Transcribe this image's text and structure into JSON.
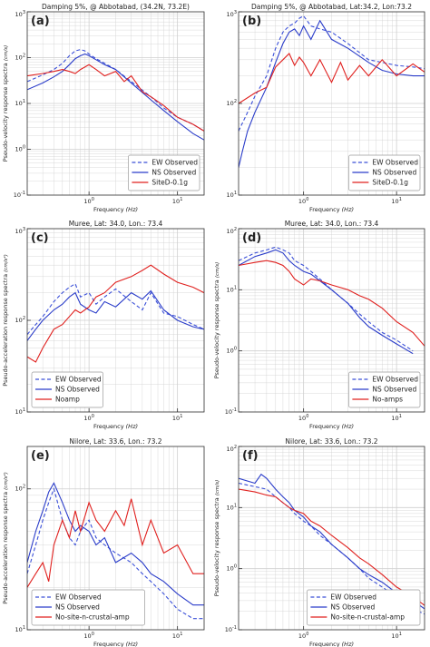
{
  "figure": {
    "frequency_axis_label": "Frequency",
    "frequency_unit": "(Hz)",
    "colors": {
      "ew": "#3a4fd8",
      "ns": "#2a3cc9",
      "model": "#e0201e",
      "grid": "#cfcfcf",
      "frame": "#333333"
    }
  },
  "chart_data": [
    {
      "type": "line",
      "panel": "(a)",
      "title": "Damping 5%, @ Abbotabad, (34.2N, 73.2E)",
      "ylabel": "Pseudo-velocity response spectra",
      "yunit": "(cm/s)",
      "xlabel": "Frequency",
      "xunit": "(Hz)",
      "xscale": "log",
      "yscale": "log",
      "xlim": [
        0.2,
        20
      ],
      "ylim": [
        0.1,
        1000
      ],
      "x_tick_labels": [
        "10^0",
        "10^1"
      ],
      "y_tick_labels": [
        "10^-1",
        "10^0",
        "10^1",
        "10^2",
        "10^3"
      ],
      "legend": {
        "placement": "bottom-right",
        "entries": [
          "EW Observed",
          "NS Observed",
          "SiteD-0.1g"
        ]
      },
      "series": [
        {
          "name": "EW Observed",
          "style": "dashed",
          "x": [
            0.2,
            0.3,
            0.4,
            0.5,
            0.6,
            0.7,
            0.8,
            0.9,
            1.0,
            1.2,
            1.5,
            2,
            3,
            5,
            7,
            10,
            15,
            20
          ],
          "y": [
            30,
            42,
            55,
            75,
            110,
            140,
            150,
            140,
            120,
            95,
            75,
            55,
            30,
            14,
            8,
            5,
            3.5,
            2.5
          ]
        },
        {
          "name": "NS Observed",
          "style": "solid",
          "x": [
            0.2,
            0.3,
            0.4,
            0.5,
            0.6,
            0.7,
            0.8,
            0.9,
            1.0,
            1.2,
            1.5,
            2,
            3,
            5,
            7,
            10,
            15,
            20
          ],
          "y": [
            20,
            28,
            38,
            50,
            70,
            95,
            110,
            120,
            110,
            90,
            70,
            55,
            28,
            12,
            7,
            4,
            2.2,
            1.6
          ]
        },
        {
          "name": "SiteD-0.1g",
          "style": "solid",
          "x": [
            0.2,
            0.3,
            0.4,
            0.5,
            0.6,
            0.7,
            0.8,
            1.0,
            1.2,
            1.5,
            2,
            2.5,
            3,
            4,
            5,
            7,
            10,
            15,
            20
          ],
          "y": [
            40,
            45,
            50,
            55,
            50,
            45,
            55,
            70,
            55,
            40,
            50,
            30,
            40,
            18,
            14,
            9,
            5,
            3.5,
            2.5
          ]
        }
      ]
    },
    {
      "type": "line",
      "panel": "(b)",
      "title": "Damping 5%, @ Abbotabad, Lat:34.2, Lon:73.2",
      "ylabel": "",
      "yunit": "",
      "xlabel": "Frequency",
      "xunit": "(Hz)",
      "xscale": "log",
      "yscale": "log",
      "xlim": [
        0.2,
        20
      ],
      "ylim": [
        10,
        1000
      ],
      "x_tick_labels": [
        "10^0",
        "10^1"
      ],
      "y_tick_labels": [
        "10^1",
        "10^2",
        "10^3"
      ],
      "legend": {
        "placement": "bottom-right",
        "entries": [
          "EW Observed",
          "NS Observed",
          "SiteD-0.1g"
        ]
      },
      "series": [
        {
          "name": "EW Observed",
          "style": "dashed",
          "x": [
            0.2,
            0.25,
            0.3,
            0.4,
            0.5,
            0.6,
            0.7,
            0.8,
            0.9,
            1.0,
            1.2,
            1.5,
            2,
            3,
            5,
            7,
            10,
            15,
            20
          ],
          "y": [
            50,
            80,
            120,
            200,
            400,
            600,
            700,
            750,
            850,
            900,
            700,
            650,
            600,
            450,
            300,
            280,
            260,
            250,
            240
          ]
        },
        {
          "name": "NS Observed",
          "style": "solid",
          "x": [
            0.2,
            0.22,
            0.25,
            0.3,
            0.4,
            0.5,
            0.6,
            0.7,
            0.8,
            0.9,
            1.0,
            1.2,
            1.5,
            2,
            3,
            5,
            7,
            10,
            15,
            20
          ],
          "y": [
            20,
            30,
            50,
            80,
            150,
            280,
            450,
            600,
            650,
            550,
            700,
            500,
            800,
            500,
            400,
            280,
            230,
            210,
            200,
            200
          ]
        },
        {
          "name": "SiteD-0.1g",
          "style": "solid",
          "x": [
            0.2,
            0.3,
            0.4,
            0.5,
            0.6,
            0.7,
            0.8,
            0.9,
            1.0,
            1.2,
            1.5,
            2,
            2.5,
            3,
            4,
            5,
            7,
            10,
            15,
            20
          ],
          "y": [
            100,
            130,
            150,
            250,
            300,
            350,
            260,
            320,
            280,
            200,
            300,
            170,
            280,
            180,
            260,
            200,
            300,
            200,
            270,
            220
          ]
        }
      ]
    },
    {
      "type": "line",
      "panel": "(c)",
      "title": "Muree, Lat: 34.0, Lon.: 73.4",
      "ylabel": "Pseudo-acceleration response spectra",
      "yunit": "(cm/s²)",
      "xlabel": "Frequency",
      "xunit": "(Hz)",
      "xscale": "log",
      "yscale": "log",
      "xlim": [
        0.2,
        20
      ],
      "ylim": [
        10,
        1000
      ],
      "x_tick_labels": [
        "10^0",
        "10^1"
      ],
      "y_tick_labels": [
        "10^1",
        "10^2",
        "10^3"
      ],
      "legend": {
        "placement": "bottom-left",
        "entries": [
          "EW Observed",
          "NS Observed",
          "Noamp"
        ]
      },
      "series": [
        {
          "name": "EW Observed",
          "style": "dashed",
          "x": [
            0.2,
            0.25,
            0.3,
            0.4,
            0.5,
            0.6,
            0.7,
            0.8,
            1.0,
            1.2,
            1.5,
            2,
            3,
            4,
            5,
            7,
            10,
            15,
            20
          ],
          "y": [
            70,
            90,
            110,
            160,
            200,
            230,
            250,
            180,
            200,
            150,
            180,
            220,
            160,
            130,
            200,
            120,
            110,
            90,
            80
          ]
        },
        {
          "name": "NS Observed",
          "style": "solid",
          "x": [
            0.2,
            0.25,
            0.3,
            0.4,
            0.5,
            0.6,
            0.7,
            0.8,
            1.0,
            1.2,
            1.5,
            2,
            3,
            4,
            5,
            7,
            10,
            15,
            20
          ],
          "y": [
            60,
            80,
            100,
            130,
            150,
            180,
            200,
            150,
            130,
            120,
            160,
            140,
            200,
            170,
            210,
            130,
            100,
            85,
            80
          ]
        },
        {
          "name": "Noamp",
          "style": "solid",
          "x": [
            0.2,
            0.25,
            0.3,
            0.4,
            0.5,
            0.6,
            0.7,
            0.8,
            1.0,
            1.2,
            1.5,
            2,
            3,
            4,
            5,
            7,
            10,
            15,
            20
          ],
          "y": [
            40,
            35,
            50,
            80,
            90,
            110,
            130,
            120,
            140,
            180,
            200,
            260,
            300,
            350,
            400,
            320,
            260,
            230,
            200
          ]
        }
      ]
    },
    {
      "type": "line",
      "panel": "(d)",
      "title": "Muree, Lat: 34.0, Lon.: 73.4",
      "ylabel": "Pseudo-velocity response spectra",
      "yunit": "(cm/s)",
      "xlabel": "Frequency",
      "xunit": "(Hz)",
      "xscale": "log",
      "yscale": "log",
      "xlim": [
        0.2,
        20
      ],
      "ylim": [
        0.1,
        100
      ],
      "x_tick_labels": [
        "10^0",
        "10^1"
      ],
      "y_tick_labels": [
        "10^-1",
        "10^0",
        "10^1",
        "10^2"
      ],
      "legend": {
        "placement": "bottom-right",
        "entries": [
          "EW Observed",
          "NS Observed",
          "No-amps"
        ]
      },
      "series": [
        {
          "name": "EW Observed",
          "style": "dashed",
          "x": [
            0.2,
            0.3,
            0.4,
            0.5,
            0.6,
            0.7,
            0.8,
            1.0,
            1.2,
            1.5,
            2,
            3,
            4,
            5,
            7,
            10,
            15
          ],
          "y": [
            30,
            40,
            45,
            50,
            45,
            40,
            30,
            25,
            20,
            15,
            10,
            6,
            4,
            3,
            2,
            1.5,
            1.0
          ]
        },
        {
          "name": "NS Observed",
          "style": "solid",
          "x": [
            0.2,
            0.3,
            0.4,
            0.5,
            0.6,
            0.7,
            0.8,
            1.0,
            1.2,
            1.5,
            2,
            3,
            4,
            5,
            7,
            10,
            15
          ],
          "y": [
            25,
            35,
            40,
            45,
            40,
            30,
            25,
            20,
            18,
            14,
            10,
            6,
            3.5,
            2.5,
            1.8,
            1.3,
            0.9
          ]
        },
        {
          "name": "No-amps",
          "style": "solid",
          "x": [
            0.2,
            0.3,
            0.4,
            0.5,
            0.6,
            0.7,
            0.8,
            1.0,
            1.2,
            1.5,
            2,
            3,
            4,
            5,
            7,
            10,
            15,
            20
          ],
          "y": [
            25,
            28,
            30,
            28,
            25,
            20,
            15,
            12,
            15,
            14,
            12,
            10,
            8,
            7,
            5,
            3,
            2,
            1.2
          ]
        }
      ]
    },
    {
      "type": "line",
      "panel": "(e)",
      "title": "Nilore, Lat: 33.6, Lon.: 73.2",
      "ylabel": "Pseudo-acceleration response spectra",
      "yunit": "(cm/s²)",
      "xlabel": "Frequency",
      "xunit": "(Hz)",
      "xscale": "log",
      "yscale": "log",
      "xlim": [
        0.2,
        20
      ],
      "ylim": [
        10,
        200
      ],
      "x_tick_labels": [
        "10^0",
        "10^1"
      ],
      "y_tick_labels": [
        "10^1",
        "10^2"
      ],
      "legend": {
        "placement": "bottom-left",
        "entries": [
          "EW Observed",
          "NS Observed",
          "No-site-n-crustal-amp"
        ]
      },
      "series": [
        {
          "name": "EW Observed",
          "style": "dashed",
          "x": [
            0.2,
            0.25,
            0.3,
            0.35,
            0.4,
            0.5,
            0.6,
            0.7,
            0.8,
            1.0,
            1.2,
            1.5,
            2,
            3,
            4,
            5,
            7,
            10,
            15,
            20
          ],
          "y": [
            25,
            40,
            60,
            80,
            100,
            60,
            45,
            40,
            50,
            60,
            45,
            40,
            35,
            30,
            25,
            22,
            18,
            14,
            12,
            12
          ]
        },
        {
          "name": "NS Observed",
          "style": "solid",
          "x": [
            0.2,
            0.25,
            0.3,
            0.35,
            0.4,
            0.5,
            0.6,
            0.7,
            0.8,
            1.0,
            1.2,
            1.5,
            2,
            3,
            4,
            5,
            7,
            10,
            15,
            20
          ],
          "y": [
            30,
            50,
            70,
            95,
            110,
            80,
            60,
            50,
            55,
            50,
            40,
            45,
            30,
            35,
            30,
            25,
            22,
            18,
            15,
            15
          ]
        },
        {
          "name": "No-site-n-crustal-amp",
          "style": "solid",
          "x": [
            0.2,
            0.25,
            0.3,
            0.35,
            0.4,
            0.5,
            0.6,
            0.7,
            0.8,
            1.0,
            1.2,
            1.5,
            2,
            2.5,
            3,
            4,
            5,
            7,
            10,
            15,
            20
          ],
          "y": [
            20,
            25,
            30,
            22,
            40,
            60,
            45,
            70,
            50,
            80,
            60,
            50,
            70,
            55,
            85,
            40,
            60,
            35,
            40,
            25,
            25
          ]
        }
      ]
    },
    {
      "type": "line",
      "panel": "(f)",
      "title": "Nilore, Lat: 33.6, Lon.: 73.2",
      "ylabel": "Pseudo-velocity response spectra",
      "yunit": "(cm/s)",
      "xlabel": "Frequency",
      "xunit": "(Hz)",
      "xscale": "log",
      "yscale": "log",
      "xlim": [
        0.2,
        20
      ],
      "ylim": [
        0.1,
        100
      ],
      "x_tick_labels": [
        "10^0",
        "10^1"
      ],
      "y_tick_labels": [
        "10^-1",
        "10^0",
        "10^1",
        "10^2"
      ],
      "legend": {
        "placement": "bottom-right",
        "entries": [
          "EW Observed",
          "NS Observed",
          "No-site-n-crustal-amp"
        ]
      },
      "series": [
        {
          "name": "EW Observed",
          "style": "dashed",
          "x": [
            0.2,
            0.3,
            0.4,
            0.5,
            0.6,
            0.7,
            0.8,
            1.0,
            1.2,
            1.5,
            2,
            3,
            4,
            5,
            7,
            10,
            15,
            20
          ],
          "y": [
            25,
            22,
            20,
            15,
            12,
            10,
            8,
            6,
            5,
            3.5,
            2.5,
            1.5,
            1.0,
            0.7,
            0.5,
            0.35,
            0.22,
            0.18
          ]
        },
        {
          "name": "NS Observed",
          "style": "solid",
          "x": [
            0.2,
            0.3,
            0.35,
            0.4,
            0.5,
            0.6,
            0.7,
            0.8,
            1.0,
            1.2,
            1.5,
            2,
            3,
            4,
            5,
            7,
            10,
            15,
            20
          ],
          "y": [
            30,
            25,
            35,
            30,
            20,
            15,
            12,
            9,
            7,
            5,
            4,
            2.5,
            1.5,
            1.0,
            0.8,
            0.6,
            0.4,
            0.3,
            0.22
          ]
        },
        {
          "name": "No-site-n-crustal-amp",
          "style": "solid",
          "x": [
            0.2,
            0.3,
            0.4,
            0.5,
            0.6,
            0.7,
            0.8,
            1.0,
            1.2,
            1.5,
            2,
            3,
            4,
            5,
            7,
            10,
            15,
            20
          ],
          "y": [
            20,
            18,
            16,
            15,
            12,
            10,
            9,
            8,
            6,
            5,
            3.5,
            2.2,
            1.5,
            1.2,
            0.8,
            0.5,
            0.35,
            0.25
          ]
        }
      ]
    }
  ]
}
